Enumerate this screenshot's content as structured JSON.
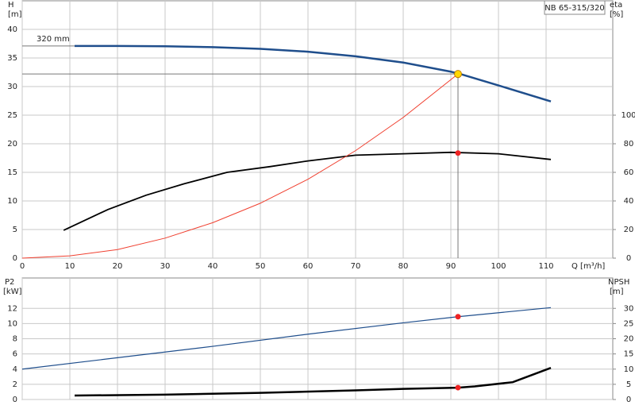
{
  "chart_data": [
    {
      "type": "line",
      "model": "NB 65-315/320",
      "y_label": "H",
      "y_unit": "[m]",
      "y2_label": "eta",
      "y2_unit": "[%]",
      "x_label": "Q [m³/h]",
      "xlim": [
        0,
        124
      ],
      "xticks": [
        0,
        10,
        20,
        30,
        40,
        50,
        60,
        70,
        80,
        90,
        100,
        110
      ],
      "ylim": [
        0,
        45
      ],
      "yticks": [
        0,
        5,
        10,
        15,
        20,
        25,
        30,
        35,
        40
      ],
      "y2lim": [
        0,
        180
      ],
      "y2ticks": [
        0,
        20,
        40,
        60,
        80,
        100
      ],
      "grid": true,
      "series": [
        {
          "name": "320 mm",
          "color": "#1f4e8c",
          "width": 2.5,
          "x": [
            11,
            20,
            30,
            40,
            50,
            60,
            70,
            80,
            90,
            92,
            100,
            111
          ],
          "values": [
            37.1,
            37.1,
            37.05,
            36.9,
            36.6,
            36.1,
            35.3,
            34.2,
            32.6,
            32.2,
            30.2,
            27.4
          ]
        },
        {
          "color": "#000000",
          "width": 1.8,
          "axis": "y2",
          "x": [
            8.7,
            18,
            26,
            34,
            43,
            52,
            60,
            70,
            80,
            90,
            100,
            111
          ],
          "values": [
            19.5,
            34,
            44,
            52,
            60,
            64,
            68,
            72,
            73,
            74,
            73,
            69
          ]
        },
        {
          "color": "#f04030",
          "width": 1,
          "x": [
            0,
            10,
            20,
            30,
            40,
            50,
            60,
            70,
            80,
            91.5
          ],
          "values": [
            0,
            0.4,
            1.5,
            3.5,
            6.2,
            9.6,
            13.8,
            18.8,
            24.6,
            32.2
          ]
        }
      ],
      "duty_point": {
        "x": 91.5,
        "y": 32.2,
        "color": "#ffd700"
      },
      "points": [
        {
          "x": 91.5,
          "y": 73.5,
          "axis": "y2",
          "color": "#ee2222"
        }
      ]
    },
    {
      "type": "line",
      "y_label": "P2",
      "y_unit": "[kW]",
      "y2_label": "NPSH",
      "y2_unit": "[m]",
      "xlim": [
        0,
        124
      ],
      "ylim": [
        0,
        16
      ],
      "yticks": [
        0,
        2,
        4,
        6,
        8,
        10,
        12
      ],
      "y2lim": [
        0,
        40
      ],
      "y2ticks": [
        0,
        5,
        10,
        15,
        20,
        25,
        30
      ],
      "grid": true,
      "series": [
        {
          "color": "#1f4e8c",
          "width": 1.2,
          "x": [
            0,
            20,
            40,
            60,
            80,
            91.5,
            111
          ],
          "values": [
            4.0,
            5.5,
            7.0,
            8.6,
            10.1,
            10.9,
            12.1
          ]
        },
        {
          "color": "#000000",
          "width": 2.5,
          "axis": "y2",
          "x": [
            11,
            30,
            50,
            70,
            80,
            91.5,
            95,
            103,
            111
          ],
          "values": [
            1.3,
            1.6,
            2.2,
            3.0,
            3.5,
            3.9,
            4.3,
            5.7,
            10.4
          ]
        }
      ],
      "points": [
        {
          "x": 91.5,
          "y": 10.9,
          "color": "#ee2222"
        },
        {
          "x": 91.5,
          "y": 3.9,
          "axis": "y2",
          "color": "#ee2222"
        }
      ]
    }
  ]
}
